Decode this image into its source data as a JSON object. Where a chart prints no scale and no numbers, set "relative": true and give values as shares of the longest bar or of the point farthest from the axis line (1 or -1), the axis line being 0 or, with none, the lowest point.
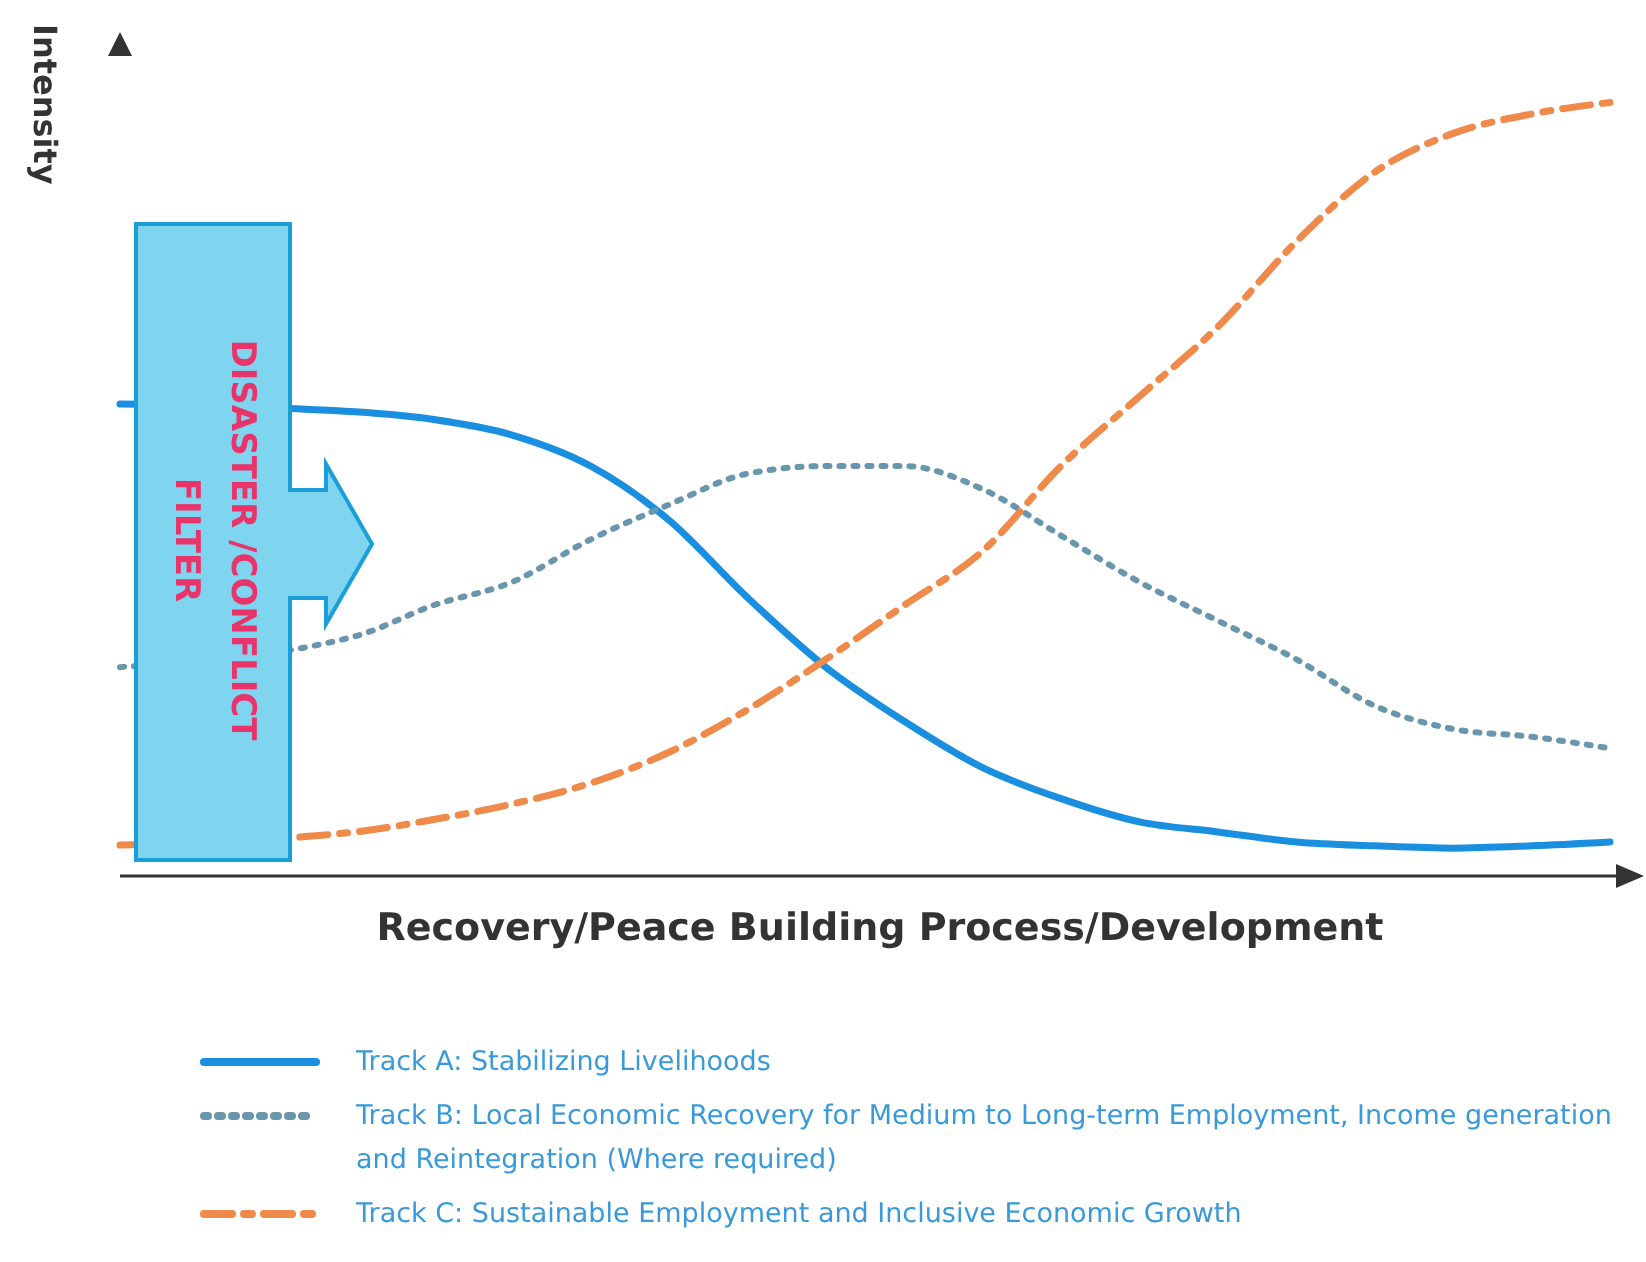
{
  "chart_data": {
    "type": "line",
    "relative": true,
    "ylabel": "Intensity",
    "xlabel": "Recovery/Peace Building Process/Development",
    "legend": "bottom",
    "grid": false,
    "marker": "none",
    "categories": [
      null,
      null,
      null,
      null,
      null,
      null,
      null,
      null,
      null,
      null,
      null,
      null,
      null,
      null,
      null,
      null,
      null,
      null,
      null,
      null
    ],
    "annotations": [
      "DISASTER /CONFLICT FILTER"
    ],
    "series": [
      {
        "name": "Track A: Stabilizing Livelihoods",
        "color": "#1a8fe0",
        "line_style": "solid",
        "values": [
          0.61,
          null,
          null,
          0.6,
          0.59,
          0.57,
          0.53,
          0.46,
          0.36,
          0.27,
          0.2,
          0.14,
          0.1,
          0.07,
          0.057,
          0.044,
          0.039,
          0.036,
          0.039,
          0.044
        ]
      },
      {
        "name": "Track B: Local Economic Recovery for Medium to Long-term Employment, Income generation and Reintegration (Where required)",
        "color": "#6a96ad",
        "line_style": "dotted",
        "values": [
          0.27,
          null,
          null,
          0.31,
          0.35,
          0.38,
          0.435,
          0.48,
          0.52,
          0.53,
          0.53,
          0.5,
          0.44,
          0.38,
          0.33,
          0.28,
          0.22,
          0.19,
          0.18,
          0.165
        ]
      },
      {
        "name": "Track C: Sustainable Employment and Inclusive Economic Growth",
        "color": "#f08a4b",
        "line_style": "dashed",
        "values": [
          0.04,
          null,
          null,
          0.057,
          0.073,
          0.093,
          0.12,
          0.16,
          0.215,
          0.28,
          0.35,
          0.42,
          0.53,
          0.62,
          0.71,
          0.82,
          0.91,
          0.96,
          0.985,
          1.0
        ]
      }
    ]
  }
}
